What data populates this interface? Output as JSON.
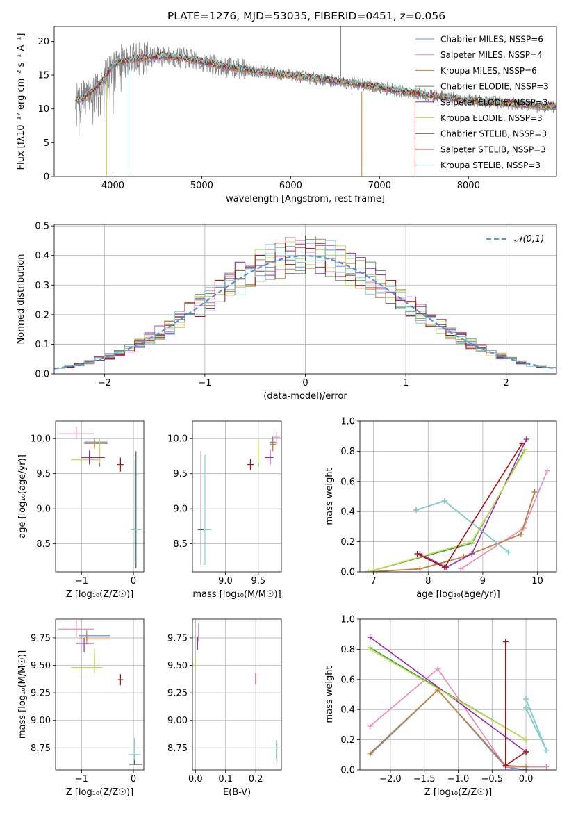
{
  "figure_title": "PLATE=1276, MJD=53035, FIBERID=0451, z=0.056",
  "colors": {
    "Chabrier MILES": "#6d8fd6",
    "Salpeter MILES": "#e889b8",
    "Kroupa MILES": "#c77f2e",
    "Chabrier ELODIE": "#4e9a4e",
    "Salpeter ELODIE": "#9b27b0",
    "Kroupa ELODIE": "#c3e24a",
    "Chabrier STELIB": "#555555",
    "Salpeter STELIB": "#aa1111",
    "Kroupa STELIB": "#7fd3d8",
    "gaussian": "#5b8fd9",
    "data": "#808080"
  },
  "chart_data": [
    {
      "id": "spectrum",
      "type": "line",
      "xlabel": "wavelength [Angstrom, rest frame]",
      "ylabel": "Flux [fλ10⁻¹⁷ erg cm⁻² s⁻¹ A⁻¹]",
      "xlim": [
        3340,
        8990
      ],
      "ylim": [
        0,
        22.2
      ],
      "xticks": [
        4000,
        5000,
        6000,
        7000,
        8000
      ],
      "yticks": [
        0,
        5,
        10,
        15,
        20
      ],
      "grid": false,
      "legend_position": "top-right",
      "legend": [
        "Chabrier MILES, NSSP=6",
        "Salpeter MILES, NSSP=4",
        "Kroupa MILES, NSSP=6",
        "Chabrier ELODIE, NSSP=3",
        "Salpeter ELODIE, NSSP=3",
        "Kroupa ELODIE, NSSP=3",
        "Chabrier STELIB, NSSP=3",
        "Salpeter STELIB, NSSP=3",
        "Kroupa STELIB, NSSP=3"
      ],
      "continuum": {
        "x": [
          3600,
          3700,
          3800,
          3900,
          4000,
          4100,
          4200,
          4400,
          4600,
          4800,
          5000,
          5200,
          5400,
          5600,
          5800,
          6000,
          6200,
          6400,
          6600,
          6800,
          7000,
          7200,
          7400,
          7600,
          7800,
          8000,
          8200,
          8400,
          8600,
          8800
        ],
        "y": [
          11.3,
          11.8,
          13.0,
          14.5,
          16.4,
          17.1,
          17.3,
          17.6,
          17.8,
          17.5,
          17.0,
          16.4,
          16.0,
          15.6,
          15.3,
          15.0,
          14.6,
          14.3,
          14.0,
          13.6,
          13.2,
          12.7,
          12.3,
          11.9,
          11.6,
          11.3,
          11.1,
          10.9,
          10.7,
          10.4
        ]
      }
    },
    {
      "id": "residuals",
      "type": "line",
      "xlabel": "(data-model)/error",
      "ylabel": "Normed distribution",
      "xlim": [
        -2.5,
        2.5
      ],
      "ylim": [
        0,
        0.505
      ],
      "xticks": [
        -2,
        -1,
        0,
        1,
        2
      ],
      "yticks": [
        0.0,
        0.1,
        0.2,
        0.3,
        0.4,
        0.5
      ],
      "grid": true,
      "legend_position": "top-right",
      "legend": [
        "𝒩(0,1)"
      ],
      "gaussian": {
        "mean": 0,
        "sigma": 1
      }
    },
    {
      "id": "age_vs_Z",
      "type": "scatter",
      "xlabel": "Z [log₁₀(Z/Z☉)]",
      "ylabel": "age  [log₁₀(age/yr)]",
      "xlim": [
        -1.5,
        0.2
      ],
      "ylim": [
        8.1,
        10.25
      ],
      "xticks": [
        -1,
        0
      ],
      "yticks": [
        8.5,
        9.0,
        9.5,
        10.0
      ],
      "grid": true,
      "points": [
        {
          "series": "Salpeter MILES",
          "x": -1.1,
          "y": 10.07,
          "xerr": [
            0.35,
            0.35
          ],
          "yerr": [
            0.08,
            0.1
          ]
        },
        {
          "series": "Chabrier MILES",
          "x": -0.75,
          "y": 9.95,
          "xerr": [
            0.2,
            0.25
          ],
          "yerr": [
            0.07,
            0.05
          ]
        },
        {
          "series": "Kroupa MILES",
          "x": -0.75,
          "y": 9.93,
          "xerr": [
            0.2,
            0.25
          ],
          "yerr": [
            0.07,
            0.05
          ]
        },
        {
          "series": "Chabrier ELODIE",
          "x": -0.65,
          "y": 9.7,
          "xerr": [
            0.55,
            0.0
          ],
          "yerr": [
            0.1,
            0.25
          ]
        },
        {
          "series": "Kroupa ELODIE",
          "x": -0.65,
          "y": 9.7,
          "xerr": [
            0.55,
            0.0
          ],
          "yerr": [
            0.05,
            0.3
          ]
        },
        {
          "series": "Salpeter ELODIE",
          "x": -0.85,
          "y": 9.73,
          "xerr": [
            0.15,
            0.3
          ],
          "yerr": [
            0.1,
            0.1
          ]
        },
        {
          "series": "Salpeter STELIB",
          "x": -0.25,
          "y": 9.63,
          "xerr": [
            0.06,
            0.06
          ],
          "yerr": [
            0.1,
            0.1
          ]
        },
        {
          "series": "Chabrier STELIB",
          "x": 0.05,
          "y": 8.7,
          "xerr": [
            0.0,
            0.0
          ],
          "yerr": [
            0.55,
            1.12
          ]
        },
        {
          "series": "Kroupa STELIB",
          "x": 0.03,
          "y": 8.7,
          "xerr": [
            0.08,
            0.12
          ],
          "yerr": [
            0.5,
            1.0
          ]
        }
      ]
    },
    {
      "id": "age_vs_mass",
      "type": "scatter",
      "xlabel": "mass [log₁₀(M/M☉)]",
      "ylabel": "",
      "xlim": [
        8.5,
        9.85
      ],
      "ylim": [
        8.1,
        10.25
      ],
      "xticks": [
        9.0,
        9.5
      ],
      "yticks": [
        8.5,
        9.0,
        9.5,
        10.0
      ],
      "grid": true,
      "points": [
        {
          "series": "Salpeter MILES",
          "x": 9.78,
          "y": 10.02,
          "xerr": [
            0.05,
            0.05
          ],
          "yerr": [
            0.1,
            0.08
          ]
        },
        {
          "series": "Chabrier MILES",
          "x": 9.72,
          "y": 9.95,
          "xerr": [
            0.05,
            0.05
          ],
          "yerr": [
            0.1,
            0.08
          ]
        },
        {
          "series": "Kroupa MILES",
          "x": 9.72,
          "y": 9.92,
          "xerr": [
            0.05,
            0.05
          ],
          "yerr": [
            0.1,
            0.08
          ]
        },
        {
          "series": "Chabrier ELODIE",
          "x": 9.5,
          "y": 9.7,
          "xerr": [
            0.0,
            0.0
          ],
          "yerr": [
            0.1,
            0.3
          ]
        },
        {
          "series": "Kroupa ELODIE",
          "x": 9.5,
          "y": 9.7,
          "xerr": [
            0.0,
            0.0
          ],
          "yerr": [
            0.05,
            0.3
          ]
        },
        {
          "series": "Salpeter ELODIE",
          "x": 9.68,
          "y": 9.73,
          "xerr": [
            0.08,
            0.05
          ],
          "yerr": [
            0.1,
            0.12
          ]
        },
        {
          "series": "Salpeter STELIB",
          "x": 9.38,
          "y": 9.63,
          "xerr": [
            0.05,
            0.05
          ],
          "yerr": [
            0.08,
            0.08
          ]
        },
        {
          "series": "Chabrier STELIB",
          "x": 8.63,
          "y": 8.7,
          "xerr": [
            0.05,
            0.05
          ],
          "yerr": [
            0.5,
            1.12
          ]
        },
        {
          "series": "Kroupa STELIB",
          "x": 8.69,
          "y": 8.7,
          "xerr": [
            0.0,
            0.1
          ],
          "yerr": [
            0.5,
            1.07
          ]
        }
      ]
    },
    {
      "id": "massweight_vs_age",
      "type": "line",
      "xlabel": "age  [log₁₀(age/yr)]",
      "ylabel": "mass weight",
      "xlim": [
        6.75,
        10.35
      ],
      "ylim": [
        0,
        1.0
      ],
      "xticks": [
        7,
        8,
        9,
        10
      ],
      "yticks": [
        0.0,
        0.2,
        0.4,
        0.6,
        0.8,
        1.0
      ],
      "grid": true,
      "series": [
        {
          "name": "Chabrier MILES",
          "x": [
            6.9,
            7.85,
            8.65,
            9.7,
            9.95
          ],
          "y": [
            0.0,
            0.02,
            0.1,
            0.25,
            0.53
          ]
        },
        {
          "name": "Salpeter MILES",
          "x": [
            8.6,
            9.75,
            10.18
          ],
          "y": [
            0.02,
            0.29,
            0.67
          ]
        },
        {
          "name": "Kroupa MILES",
          "x": [
            6.9,
            7.85,
            8.65,
            9.7,
            9.95
          ],
          "y": [
            0.0,
            0.02,
            0.1,
            0.25,
            0.53
          ]
        },
        {
          "name": "Chabrier ELODIE",
          "x": [
            6.9,
            8.8,
            9.77
          ],
          "y": [
            0.0,
            0.19,
            0.81
          ]
        },
        {
          "name": "Salpeter ELODIE",
          "x": [
            7.85,
            8.33,
            8.8,
            9.8
          ],
          "y": [
            0.12,
            0.03,
            0.12,
            0.88
          ]
        },
        {
          "name": "Kroupa ELODIE",
          "x": [
            6.9,
            8.8,
            9.77
          ],
          "y": [
            0.0,
            0.2,
            0.8
          ]
        },
        {
          "name": "Chabrier STELIB",
          "x": [
            7.78,
            8.3,
            9.47
          ],
          "y": [
            0.41,
            0.47,
            0.13
          ]
        },
        {
          "name": "Salpeter STELIB",
          "x": [
            7.8,
            8.3,
            9.72
          ],
          "y": [
            0.12,
            0.03,
            0.85
          ]
        },
        {
          "name": "Kroupa STELIB",
          "x": [
            7.78,
            8.3,
            9.47
          ],
          "y": [
            0.41,
            0.47,
            0.13
          ]
        }
      ]
    },
    {
      "id": "mass_vs_Z",
      "type": "scatter",
      "xlabel": "Z [log₁₀(Z/Z☉)]",
      "ylabel": "mass [log₁₀(M/M☉)]",
      "xlim": [
        -1.5,
        0.2
      ],
      "ylim": [
        8.55,
        9.92
      ],
      "xticks": [
        -1,
        0
      ],
      "yticks": [
        8.75,
        9.0,
        9.25,
        9.5,
        9.75
      ],
      "grid": true,
      "points": [
        {
          "series": "Salpeter MILES",
          "x": -1.1,
          "y": 9.83,
          "xerr": [
            0.35,
            0.35
          ],
          "yerr": [
            0.08,
            0.08
          ]
        },
        {
          "series": "Chabrier MILES",
          "x": -0.9,
          "y": 9.77,
          "xerr": [
            0.15,
            0.45
          ],
          "yerr": [
            0.05,
            0.05
          ]
        },
        {
          "series": "Kroupa MILES",
          "x": -0.9,
          "y": 9.74,
          "xerr": [
            0.15,
            0.45
          ],
          "yerr": [
            0.05,
            0.05
          ]
        },
        {
          "series": "Chabrier ELODIE",
          "x": -0.75,
          "y": 9.48,
          "xerr": [
            0.45,
            0.15
          ],
          "yerr": [
            0.0,
            0.12
          ]
        },
        {
          "series": "Kroupa ELODIE",
          "x": -0.75,
          "y": 9.48,
          "xerr": [
            0.45,
            0.15
          ],
          "yerr": [
            0.05,
            0.17
          ]
        },
        {
          "series": "Salpeter ELODIE",
          "x": -0.95,
          "y": 9.7,
          "xerr": [
            0.15,
            0.2
          ],
          "yerr": [
            0.08,
            0.05
          ]
        },
        {
          "series": "Salpeter STELIB",
          "x": -0.25,
          "y": 9.37,
          "xerr": [
            0.05,
            0.05
          ],
          "yerr": [
            0.05,
            0.05
          ]
        },
        {
          "series": "Chabrier STELIB",
          "x": 0.02,
          "y": 8.6,
          "xerr": [
            0.1,
            0.15
          ],
          "yerr": [
            0.0,
            0.1
          ]
        },
        {
          "series": "Kroupa STELIB",
          "x": 0.02,
          "y": 8.69,
          "xerr": [
            0.1,
            0.12
          ],
          "yerr": [
            0.05,
            0.15
          ]
        }
      ]
    },
    {
      "id": "mass_vs_EBV",
      "type": "scatter",
      "xlabel": "E(B-V)",
      "ylabel": "",
      "xlim": [
        -0.01,
        0.285
      ],
      "ylim": [
        8.55,
        9.92
      ],
      "xticks": [
        0.0,
        0.1,
        0.2
      ],
      "yticks": [
        8.75,
        9.0,
        9.25,
        9.5,
        9.75
      ],
      "grid": true,
      "points": [
        {
          "series": "Salpeter MILES",
          "x": 0.01,
          "y": 9.8,
          "xerr": [
            0.0,
            0.0
          ],
          "yerr": [
            0.08,
            0.08
          ]
        },
        {
          "series": "Chabrier MILES",
          "x": 0.005,
          "y": 9.72,
          "xerr": [
            0.0,
            0.0
          ],
          "yerr": [
            0.05,
            0.05
          ]
        },
        {
          "series": "Salpeter ELODIE",
          "x": 0.007,
          "y": 9.7,
          "xerr": [
            0.0,
            0.0
          ],
          "yerr": [
            0.06,
            0.06
          ]
        },
        {
          "series": "Kroupa ELODIE",
          "x": 0.0,
          "y": 9.52,
          "xerr": [
            0.0,
            0.0
          ],
          "yerr": [
            0.05,
            0.05
          ]
        },
        {
          "series": "Salpeter STELIB",
          "x": 0.2,
          "y": 9.38,
          "xerr": [
            0.0,
            0.0
          ],
          "yerr": [
            0.05,
            0.05
          ]
        },
        {
          "series": "Chabrier STELIB",
          "x": 0.27,
          "y": 8.7,
          "xerr": [
            0.0,
            0.0
          ],
          "yerr": [
            0.1,
            0.1
          ]
        },
        {
          "series": "Kroupa STELIB",
          "x": 0.268,
          "y": 8.72,
          "xerr": [
            0.0,
            0.0
          ],
          "yerr": [
            0.08,
            0.1
          ]
        }
      ]
    },
    {
      "id": "massweight_vs_Z",
      "type": "line",
      "xlabel": "Z [log₁₀(Z/Z☉)]",
      "ylabel": "mass weight",
      "xlim": [
        -2.45,
        0.45
      ],
      "ylim": [
        0,
        1.0
      ],
      "xticks": [
        -2.0,
        -1.5,
        -1.0,
        -0.5,
        0.0
      ],
      "yticks": [
        0.0,
        0.2,
        0.4,
        0.6,
        0.8,
        1.0
      ],
      "grid": true,
      "series": [
        {
          "name": "Chabrier MILES",
          "x": [
            -2.3,
            -1.3,
            -0.3,
            0.0
          ],
          "y": [
            0.1,
            0.53,
            0.02,
            0.0
          ]
        },
        {
          "name": "Salpeter MILES",
          "x": [
            -2.3,
            -1.3,
            -0.3,
            0.3
          ],
          "y": [
            0.29,
            0.67,
            0.02,
            0.02
          ]
        },
        {
          "name": "Kroupa MILES",
          "x": [
            -2.3,
            -1.3,
            -0.3,
            0.0
          ],
          "y": [
            0.11,
            0.53,
            0.03,
            0.02
          ]
        },
        {
          "name": "Chabrier ELODIE",
          "x": [
            -2.3,
            0.0
          ],
          "y": [
            0.81,
            0.2
          ]
        },
        {
          "name": "Salpeter ELODIE",
          "x": [
            -2.3,
            0.0
          ],
          "y": [
            0.88,
            0.12
          ]
        },
        {
          "name": "Kroupa ELODIE",
          "x": [
            -2.3,
            0.0
          ],
          "y": [
            0.8,
            0.2
          ]
        },
        {
          "name": "Chabrier STELIB",
          "x": [
            0.0,
            0.3,
            0.0
          ],
          "y": [
            0.47,
            0.13,
            0.41
          ]
        },
        {
          "name": "Salpeter STELIB",
          "x": [
            -0.3,
            -0.3,
            0.0
          ],
          "y": [
            0.85,
            0.03,
            0.12
          ]
        },
        {
          "name": "Kroupa STELIB",
          "x": [
            0.0,
            0.3,
            0.0
          ],
          "y": [
            0.47,
            0.13,
            0.41
          ]
        }
      ]
    }
  ]
}
